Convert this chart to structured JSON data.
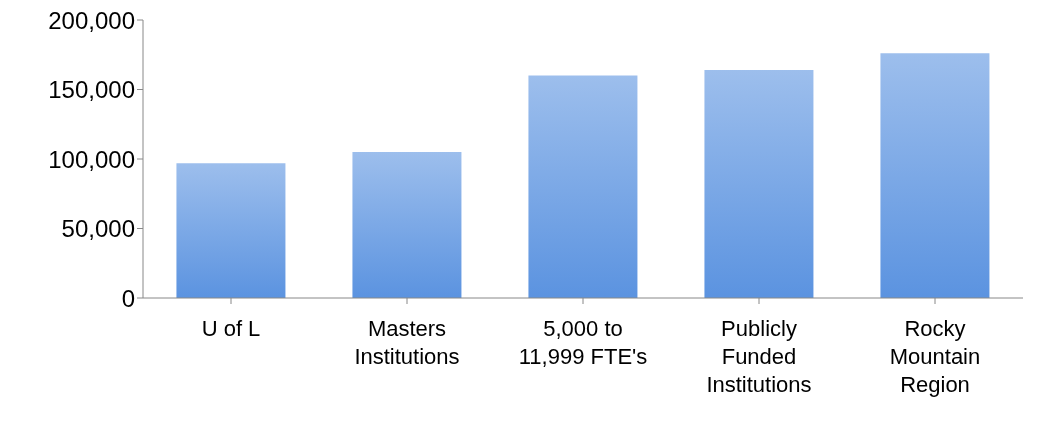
{
  "chart_data": {
    "type": "bar",
    "categories": [
      "U of L",
      "Masters Institutions",
      "5,000 to 11,999 FTE's",
      "Publicly Funded Institutions",
      "Rocky Mountain Region"
    ],
    "values": [
      97000,
      105000,
      160000,
      164000,
      176000
    ],
    "color": "#5b93e0",
    "ylim": [
      0,
      200000
    ],
    "yticks": [
      0,
      {
        "value": 50000,
        "label": "50,000"
      },
      {
        "value": 100000,
        "label": "100,000"
      },
      {
        "value": 150000,
        "label": "150,000"
      },
      {
        "value": 200000,
        "label": "200,000"
      }
    ],
    "grid": false
  }
}
